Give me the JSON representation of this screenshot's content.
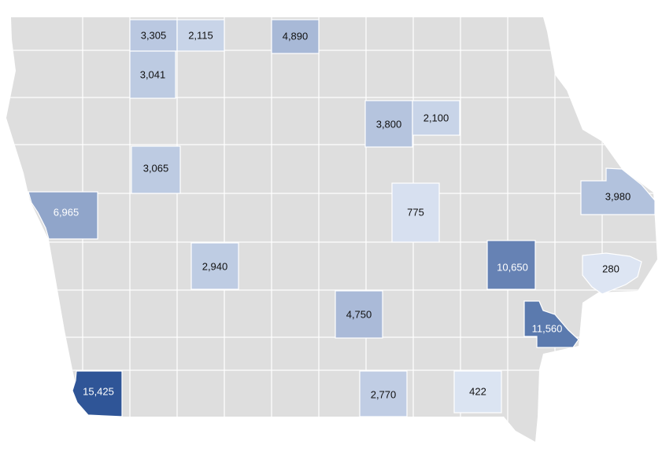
{
  "counties": [
    {
      "value": 3305,
      "label": "3,305"
    },
    {
      "value": 2115,
      "label": "2,115"
    },
    {
      "value": 4890,
      "label": "4,890"
    },
    {
      "value": 3041,
      "label": "3,041"
    },
    {
      "value": 3800,
      "label": "3,800"
    },
    {
      "value": 2100,
      "label": "2,100"
    },
    {
      "value": 3065,
      "label": "3,065"
    },
    {
      "value": 6965,
      "label": "6,965"
    },
    {
      "value": 775,
      "label": "775"
    },
    {
      "value": 3980,
      "label": "3,980"
    },
    {
      "value": 10650,
      "label": "10,650"
    },
    {
      "value": 280,
      "label": "280"
    },
    {
      "value": 2940,
      "label": "2,940"
    },
    {
      "value": 4750,
      "label": "4,750"
    },
    {
      "value": 11560,
      "label": "11,560"
    },
    {
      "value": 15425,
      "label": "15,425"
    },
    {
      "value": 2770,
      "label": "2,770"
    },
    {
      "value": 422,
      "label": "422"
    }
  ]
}
